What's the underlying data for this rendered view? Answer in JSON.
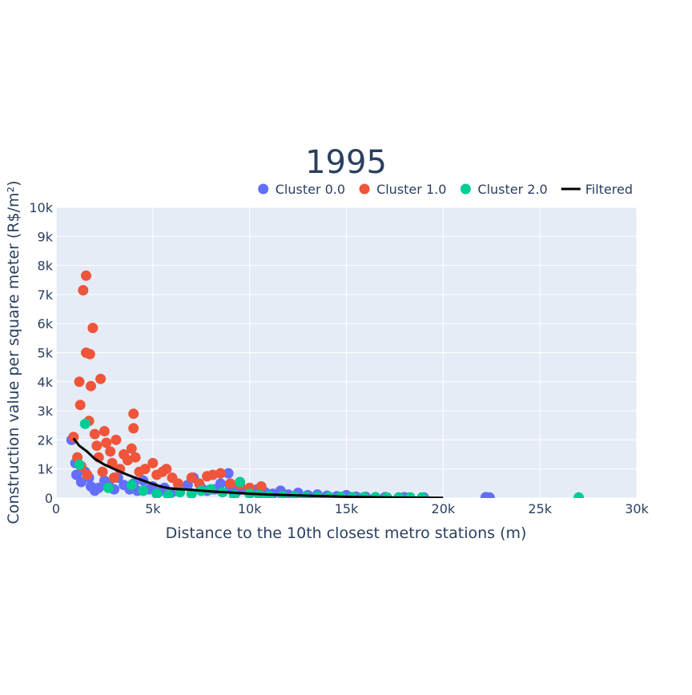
{
  "chart_data": {
    "type": "scatter",
    "title": "1995",
    "xlabel": "Distance to the 10th closest metro stations (m)",
    "ylabel": "Construction value per square meter (R$/m²)",
    "xlim": [
      0,
      30000
    ],
    "ylim": [
      0,
      10000
    ],
    "xticks": [
      0,
      5000,
      10000,
      15000,
      20000,
      25000,
      30000
    ],
    "xtick_labels": [
      "0",
      "5k",
      "10k",
      "15k",
      "20k",
      "25k",
      "30k"
    ],
    "yticks": [
      0,
      1000,
      2000,
      3000,
      4000,
      5000,
      6000,
      7000,
      8000,
      9000,
      10000
    ],
    "ytick_labels": [
      "0",
      "1k",
      "2k",
      "3k",
      "4k",
      "5k",
      "6k",
      "7k",
      "8k",
      "9k",
      "10k"
    ],
    "grid": true,
    "legend_position": "top-right",
    "background": "#e5ecf6",
    "series": [
      {
        "name": "Cluster 0.0",
        "mode": "markers",
        "color": "#636efa",
        "points": [
          [
            800,
            2000
          ],
          [
            1000,
            1200
          ],
          [
            1050,
            800
          ],
          [
            1300,
            550
          ],
          [
            1500,
            900
          ],
          [
            1700,
            700
          ],
          [
            1800,
            400
          ],
          [
            2000,
            250
          ],
          [
            2200,
            350
          ],
          [
            2500,
            600
          ],
          [
            2700,
            500
          ],
          [
            3000,
            300
          ],
          [
            3200,
            700
          ],
          [
            3500,
            450
          ],
          [
            3800,
            300
          ],
          [
            4000,
            500
          ],
          [
            4200,
            250
          ],
          [
            4500,
            600
          ],
          [
            4800,
            300
          ],
          [
            5000,
            400
          ],
          [
            5300,
            200
          ],
          [
            5600,
            350
          ],
          [
            6000,
            200
          ],
          [
            6300,
            300
          ],
          [
            6800,
            450
          ],
          [
            7100,
            700
          ],
          [
            7500,
            350
          ],
          [
            7800,
            250
          ],
          [
            8200,
            300
          ],
          [
            8500,
            500
          ],
          [
            8900,
            850
          ],
          [
            9000,
            400
          ],
          [
            9300,
            200
          ],
          [
            9600,
            300
          ],
          [
            10000,
            150
          ],
          [
            10400,
            300
          ],
          [
            10800,
            200
          ],
          [
            11200,
            150
          ],
          [
            11600,
            250
          ],
          [
            12000,
            120
          ],
          [
            12500,
            180
          ],
          [
            13000,
            100
          ],
          [
            13500,
            120
          ],
          [
            14000,
            80
          ],
          [
            14500,
            60
          ],
          [
            15000,
            100
          ],
          [
            15500,
            50
          ],
          [
            16000,
            40
          ],
          [
            17000,
            30
          ],
          [
            18000,
            30
          ],
          [
            19000,
            20
          ],
          [
            22200,
            30
          ],
          [
            22400,
            20
          ]
        ]
      },
      {
        "name": "Cluster 1.0",
        "mode": "markers",
        "color": "#ef553b",
        "points": [
          [
            900,
            2100
          ],
          [
            1100,
            1400
          ],
          [
            1200,
            4000
          ],
          [
            1250,
            3200
          ],
          [
            1400,
            7150
          ],
          [
            1550,
            7650
          ],
          [
            1550,
            5000
          ],
          [
            1700,
            2650
          ],
          [
            1750,
            4950
          ],
          [
            1800,
            3850
          ],
          [
            1900,
            5850
          ],
          [
            2000,
            2200
          ],
          [
            2100,
            1800
          ],
          [
            2200,
            1400
          ],
          [
            2300,
            4100
          ],
          [
            2500,
            2300
          ],
          [
            2600,
            1900
          ],
          [
            2800,
            1600
          ],
          [
            2900,
            1200
          ],
          [
            3100,
            2000
          ],
          [
            3300,
            1000
          ],
          [
            3500,
            1500
          ],
          [
            3700,
            1300
          ],
          [
            3900,
            1700
          ],
          [
            4000,
            2400
          ],
          [
            4000,
            2900
          ],
          [
            4100,
            1400
          ],
          [
            4300,
            900
          ],
          [
            4600,
            1000
          ],
          [
            5000,
            1200
          ],
          [
            5200,
            800
          ],
          [
            5500,
            900
          ],
          [
            5700,
            1000
          ],
          [
            6000,
            700
          ],
          [
            6300,
            500
          ],
          [
            7000,
            700
          ],
          [
            7400,
            500
          ],
          [
            7800,
            750
          ],
          [
            8100,
            800
          ],
          [
            8500,
            850
          ],
          [
            9000,
            500
          ],
          [
            9500,
            450
          ],
          [
            10000,
            350
          ],
          [
            10600,
            400
          ],
          [
            1600,
            800
          ],
          [
            2400,
            900
          ],
          [
            3000,
            700
          ],
          [
            1300,
            1100
          ]
        ]
      },
      {
        "name": "Cluster 2.0",
        "mode": "markers",
        "color": "#00cc96",
        "points": [
          [
            1200,
            1150
          ],
          [
            1500,
            2550
          ],
          [
            2700,
            350
          ],
          [
            3900,
            450
          ],
          [
            4500,
            250
          ],
          [
            5200,
            150
          ],
          [
            5800,
            100
          ],
          [
            6400,
            200
          ],
          [
            7000,
            150
          ],
          [
            7500,
            250
          ],
          [
            8000,
            300
          ],
          [
            8600,
            200
          ],
          [
            9200,
            100
          ],
          [
            9500,
            550
          ],
          [
            10000,
            150
          ],
          [
            10500,
            100
          ],
          [
            11000,
            80
          ],
          [
            11700,
            70
          ],
          [
            12300,
            60
          ],
          [
            12900,
            50
          ],
          [
            13500,
            40
          ],
          [
            14100,
            40
          ],
          [
            14700,
            40
          ],
          [
            15300,
            30
          ],
          [
            15900,
            30
          ],
          [
            16500,
            30
          ],
          [
            17100,
            20
          ],
          [
            17700,
            20
          ],
          [
            18300,
            20
          ],
          [
            18900,
            20
          ],
          [
            27000,
            20
          ]
        ]
      },
      {
        "name": "Filtered",
        "mode": "lines",
        "color": "#000000",
        "points": [
          [
            900,
            2050
          ],
          [
            1200,
            1800
          ],
          [
            1600,
            1600
          ],
          [
            2000,
            1350
          ],
          [
            2500,
            1150
          ],
          [
            3000,
            1000
          ],
          [
            3500,
            850
          ],
          [
            4000,
            720
          ],
          [
            4500,
            600
          ],
          [
            5000,
            480
          ],
          [
            5500,
            380
          ],
          [
            6000,
            320
          ],
          [
            7000,
            280
          ],
          [
            8000,
            230
          ],
          [
            9000,
            190
          ],
          [
            10000,
            150
          ],
          [
            11000,
            120
          ],
          [
            12000,
            100
          ],
          [
            13000,
            80
          ],
          [
            14000,
            60
          ],
          [
            15000,
            40
          ],
          [
            16000,
            30
          ],
          [
            17000,
            20
          ],
          [
            18000,
            15
          ],
          [
            19000,
            10
          ],
          [
            20000,
            5
          ]
        ]
      }
    ]
  }
}
